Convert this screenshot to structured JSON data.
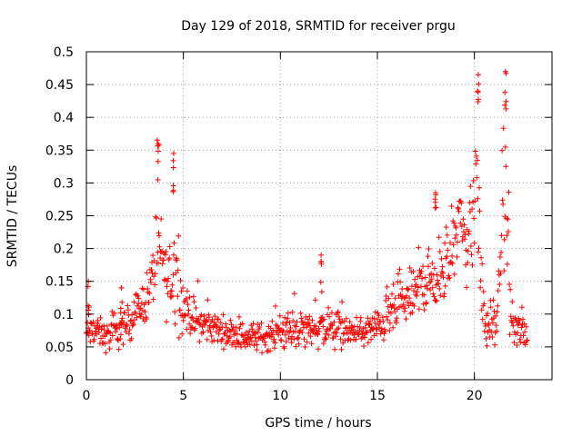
{
  "chart_data": {
    "type": "scatter",
    "title": "Day 129 of 2018, SRMTID for receiver prgu",
    "xlabel": "GPS time / hours",
    "ylabel": "SRMTID / TECUs",
    "xlim": [
      0,
      24
    ],
    "ylim": [
      0,
      0.5
    ],
    "grid": true,
    "marker": "+",
    "x_ticks": [
      0,
      5,
      10,
      15,
      20
    ],
    "x_tick_labels": [
      "0",
      "5",
      "10",
      "15",
      "20"
    ],
    "y_ticks": [
      0,
      0.05,
      0.1,
      0.15,
      0.2,
      0.25,
      0.3,
      0.35,
      0.4,
      0.45,
      0.5
    ],
    "y_tick_labels": [
      "0",
      "0.05",
      "0.1",
      "0.15",
      "0.2",
      "0.25",
      "0.3",
      "0.35",
      "0.4",
      "0.45",
      "0.5"
    ],
    "series": [
      {
        "name": "SRMTID",
        "color": "#ff0000",
        "sample_interval_hours": 0.025,
        "sample_count": 910,
        "envelope": {
          "x": [
            0.0,
            0.5,
            1.0,
            1.5,
            2.0,
            2.5,
            3.0,
            3.3,
            3.6,
            3.9,
            4.2,
            4.5,
            4.8,
            5.0,
            5.5,
            6.0,
            7.0,
            8.0,
            9.0,
            10.0,
            11.0,
            12.0,
            13.0,
            14.0,
            15.0,
            15.5,
            16.0,
            16.5,
            17.0,
            17.5,
            18.0,
            18.5,
            19.0,
            19.3,
            19.6,
            19.9,
            20.1,
            20.3,
            20.5,
            20.7,
            20.9,
            21.1,
            21.3,
            21.5,
            21.7,
            21.9,
            22.1,
            22.4,
            22.8
          ],
          "median": [
            0.07,
            0.075,
            0.065,
            0.07,
            0.08,
            0.1,
            0.12,
            0.14,
            0.19,
            0.19,
            0.14,
            0.17,
            0.13,
            0.11,
            0.095,
            0.085,
            0.075,
            0.065,
            0.065,
            0.07,
            0.075,
            0.08,
            0.075,
            0.07,
            0.08,
            0.095,
            0.11,
            0.12,
            0.135,
            0.15,
            0.15,
            0.16,
            0.22,
            0.25,
            0.2,
            0.24,
            0.33,
            0.18,
            0.09,
            0.08,
            0.09,
            0.08,
            0.13,
            0.3,
            0.22,
            0.09,
            0.08,
            0.07,
            0.07
          ],
          "spread": [
            0.02,
            0.02,
            0.02,
            0.025,
            0.025,
            0.025,
            0.03,
            0.04,
            0.06,
            0.05,
            0.05,
            0.07,
            0.05,
            0.035,
            0.025,
            0.025,
            0.02,
            0.02,
            0.02,
            0.02,
            0.025,
            0.03,
            0.025,
            0.02,
            0.025,
            0.03,
            0.035,
            0.035,
            0.035,
            0.04,
            0.04,
            0.045,
            0.06,
            0.05,
            0.05,
            0.07,
            0.09,
            0.07,
            0.04,
            0.03,
            0.03,
            0.03,
            0.05,
            0.1,
            0.08,
            0.03,
            0.025,
            0.025,
            0.025
          ]
        },
        "peaks": [
          [
            3.7,
            0.36
          ],
          [
            4.5,
            0.345
          ],
          [
            20.2,
            0.465
          ],
          [
            21.6,
            0.47
          ],
          [
            12.1,
            0.19
          ],
          [
            18.0,
            0.285
          ],
          [
            0.1,
            0.15
          ],
          [
            1.8,
            0.14
          ]
        ]
      }
    ]
  }
}
